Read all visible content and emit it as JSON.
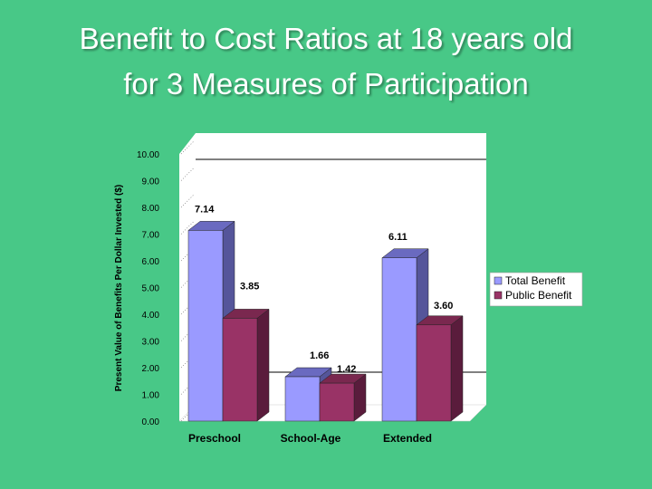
{
  "slide": {
    "title_line1": "Benefit to Cost Ratios at 18 years old",
    "title_line2": "for 3 Measures of Participation"
  },
  "colors": {
    "background": "#48c887",
    "total_front": "#9a9aff",
    "total_side": "#55559a",
    "total_top": "#6a6ac0",
    "public_front": "#993366",
    "public_side": "#5a1c3c",
    "public_top": "#7a284f"
  },
  "chart_data": {
    "type": "bar",
    "title": "",
    "xlabel": "",
    "ylabel": "Present Value of Benefits Per Dollar Invested ($)",
    "categories": [
      "Preschool",
      "School-Age",
      "Extended"
    ],
    "series": [
      {
        "name": "Total Benefit",
        "values": [
          7.14,
          1.66,
          6.11
        ],
        "labels": [
          "7.14",
          "1.66",
          "6.11"
        ]
      },
      {
        "name": "Public Benefit",
        "values": [
          3.85,
          1.42,
          3.6
        ],
        "labels": [
          "3.85",
          "1.42",
          "3.60"
        ]
      }
    ],
    "ylim": [
      0,
      10
    ],
    "yticks": [
      "0.00",
      "1.00",
      "2.00",
      "3.00",
      "4.00",
      "5.00",
      "6.00",
      "7.00",
      "8.00",
      "9.00",
      "10.00"
    ],
    "legend": "right",
    "three_d": true
  }
}
